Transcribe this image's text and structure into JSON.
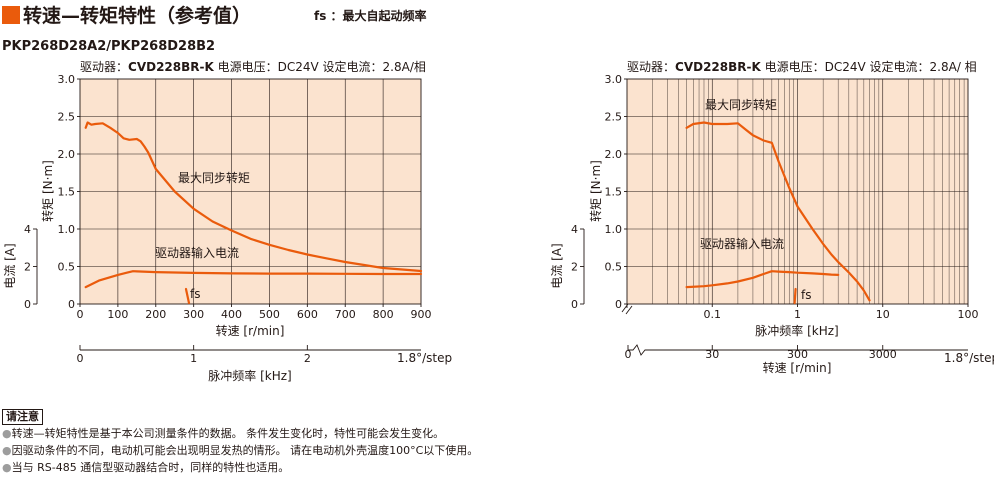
{
  "header": {
    "title": "转速—转矩特性（参考值）",
    "fs_note": "fs ：最大自起动频率",
    "accent": "#ea5b0c"
  },
  "model": "PKP268D28A2/PKP268D28B2",
  "notes": {
    "title": "请注意",
    "items": [
      "转速—转矩特性是基于本公司测量条件的数据。 条件发生变化时，特性可能会发生变化。",
      "因驱动条件的不同，电动机可能会出现明显发热的情形。 请在电动机外壳温度100°C以下使用。",
      "当与 RS-485 通信型驱动器结合时，同样的特性也适用。"
    ]
  },
  "chart_data": [
    {
      "type": "line",
      "driver_prefix": "驱动器：",
      "driver_model": "CVD228BR-K",
      "driver_suffix": " 电源电压：DC24V 设定电流：2.8A/相",
      "xlabel": "转速 [r/min]",
      "xlim": [
        0,
        900
      ],
      "x_ticks": [
        0,
        100,
        200,
        300,
        400,
        500,
        600,
        700,
        800,
        900
      ],
      "ylabel": "转矩 [N·m]",
      "ylim": [
        0,
        3.0
      ],
      "y_ticks": [
        "0",
        "0.5",
        "1.0",
        "1.5",
        "2.0",
        "2.5",
        "3.0"
      ],
      "current_label": "电流 [A]",
      "current_lim": [
        0,
        4
      ],
      "current_ticks": [
        "0",
        "2",
        "4"
      ],
      "pulse_label": "脉冲频率 [kHz]",
      "pulse_lim": [
        0,
        3
      ],
      "pulse_ticks": [
        "0",
        "1",
        "2"
      ],
      "step_label": "1.8°/step",
      "fs_label": "fs",
      "fs_speed": 285,
      "grid": true,
      "series": [
        {
          "name": "最大同步转矩",
          "x": [
            15,
            20,
            30,
            40,
            60,
            80,
            100,
            115,
            130,
            150,
            160,
            170,
            180,
            200,
            250,
            300,
            350,
            400,
            450,
            500,
            550,
            600,
            650,
            700,
            750,
            800,
            850,
            900
          ],
          "y": [
            2.35,
            2.42,
            2.39,
            2.4,
            2.41,
            2.35,
            2.28,
            2.21,
            2.19,
            2.2,
            2.17,
            2.1,
            2.02,
            1.8,
            1.5,
            1.27,
            1.1,
            0.98,
            0.87,
            0.79,
            0.72,
            0.66,
            0.61,
            0.56,
            0.52,
            0.48,
            0.46,
            0.44
          ]
        },
        {
          "name": "驱动器输入电流",
          "x": [
            15,
            50,
            100,
            140,
            150,
            200,
            300,
            400,
            500,
            600,
            700,
            800,
            900
          ],
          "y": [
            0.9,
            1.25,
            1.55,
            1.75,
            1.74,
            1.7,
            1.66,
            1.63,
            1.62,
            1.62,
            1.61,
            1.6,
            1.6
          ]
        }
      ]
    },
    {
      "type": "line",
      "driver_prefix": "驱动器：",
      "driver_model": "CVD228BR-K",
      "driver_suffix": " 电源电压：DC24V 设定电流：2.8A/ 相",
      "xlabel": "脉冲频率 [kHz]",
      "x_scale": "log",
      "xlim": [
        0.01,
        100
      ],
      "x_ticks": [
        "0.1",
        "1",
        "10",
        "100"
      ],
      "ylabel": "转矩 [N·m]",
      "ylim": [
        0,
        3.0
      ],
      "y_ticks": [
        "0",
        "0.5",
        "1.0",
        "1.5",
        "2.0",
        "2.5",
        "3.0"
      ],
      "current_label": "电流 [A]",
      "current_lim": [
        0,
        4
      ],
      "current_ticks": [
        "0",
        "2",
        "4"
      ],
      "speed_label": "转速 [r/min]",
      "speed_ticks": [
        "0",
        "30",
        "300",
        "3000"
      ],
      "step_label": "1.8°/step",
      "fs_label": "fs",
      "fs_freq": 0.95,
      "grid": true,
      "series": [
        {
          "name": "最大同步转矩",
          "x": [
            0.05,
            0.06,
            0.08,
            0.1,
            0.15,
            0.2,
            0.25,
            0.3,
            0.4,
            0.5,
            0.6,
            0.8,
            1,
            1.5,
            2,
            2.5,
            3,
            4,
            5,
            6,
            7
          ],
          "y": [
            2.35,
            2.4,
            2.42,
            2.4,
            2.4,
            2.41,
            2.32,
            2.25,
            2.18,
            2.15,
            1.9,
            1.55,
            1.3,
            1.0,
            0.8,
            0.66,
            0.56,
            0.42,
            0.3,
            0.18,
            0.05
          ]
        },
        {
          "name": "驱动器输入电流",
          "x": [
            0.05,
            0.08,
            0.1,
            0.15,
            0.2,
            0.3,
            0.4,
            0.5,
            0.6,
            0.8,
            1,
            1.5,
            2,
            2.5,
            3
          ],
          "y": [
            0.9,
            0.95,
            1.0,
            1.1,
            1.2,
            1.4,
            1.6,
            1.75,
            1.73,
            1.7,
            1.67,
            1.63,
            1.6,
            1.57,
            1.55
          ]
        }
      ]
    }
  ]
}
